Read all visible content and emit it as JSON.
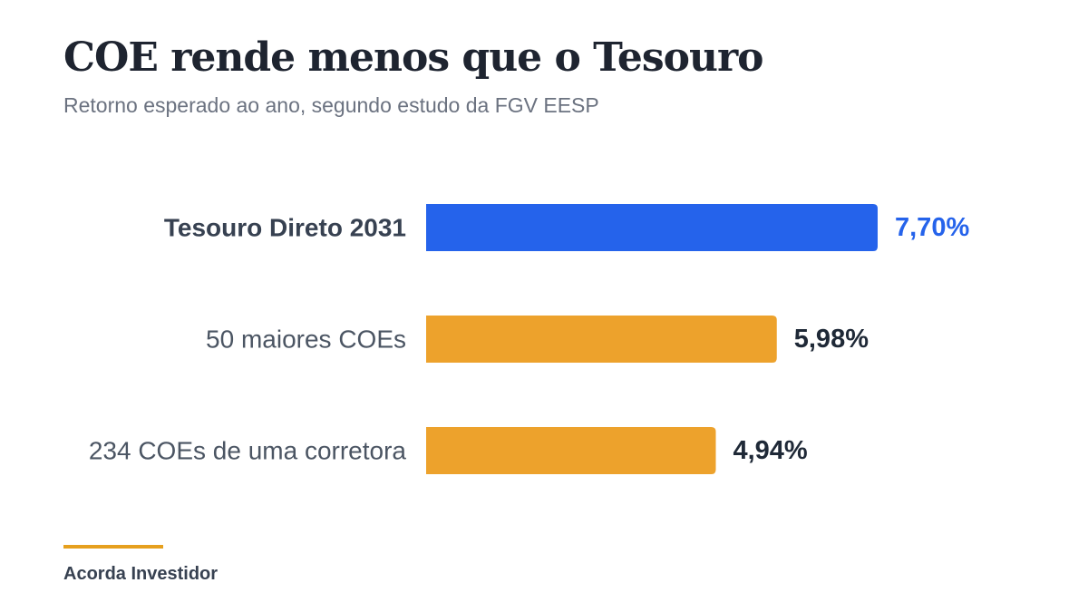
{
  "header": {
    "title": "COE rende menos que o Tesouro",
    "subtitle": "Retorno esperado ao ano, segundo estudo da FGV EESP"
  },
  "footer": {
    "source": "Acorda Investidor"
  },
  "colors": {
    "highlight": "#2563eb",
    "bar": "#eda22c",
    "footer_rule": "#e6a01e"
  },
  "chart_data": {
    "type": "bar",
    "orientation": "horizontal",
    "title": "COE rende menos que o Tesouro",
    "subtitle": "Retorno esperado ao ano, segundo estudo da FGV EESP",
    "categories": [
      "Tesouro Direto 2031",
      "50 maiores COEs",
      "234 COEs de uma corretora"
    ],
    "values": [
      7.7,
      5.98,
      4.94
    ],
    "value_labels": [
      "7,70%",
      "5,98%",
      "4,94%"
    ],
    "highlighted": [
      true,
      false,
      false
    ],
    "unit": "%",
    "xlim": [
      0,
      7.7
    ],
    "grid": false,
    "legend": "none"
  }
}
